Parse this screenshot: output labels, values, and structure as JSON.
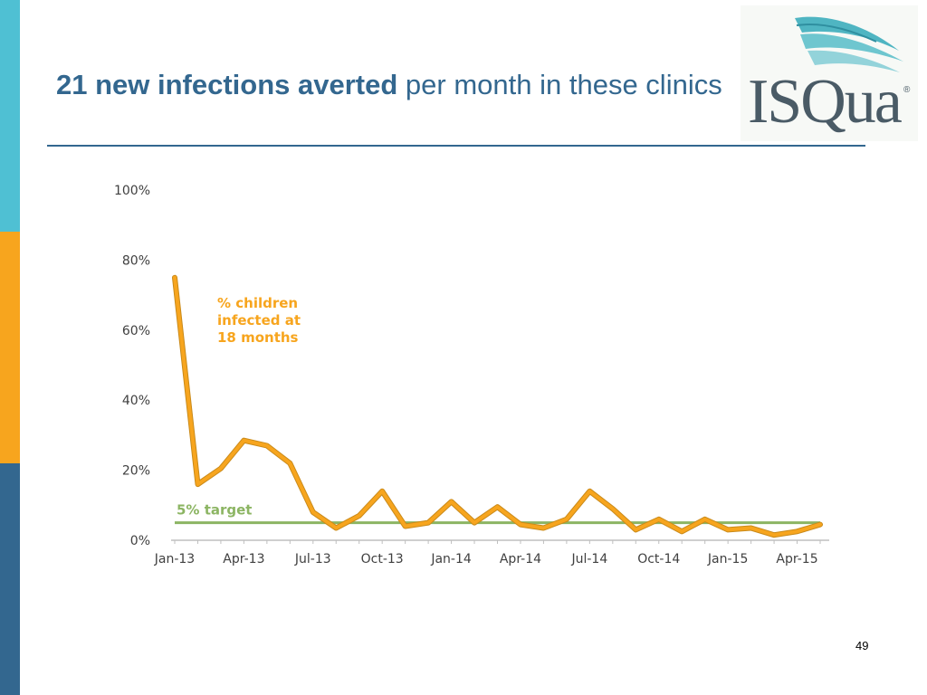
{
  "slide": {
    "title_bold": "21 new infections averted",
    "title_rest": " per month in these clinics",
    "page_number": "49",
    "logo_text": "ISQua",
    "logo_registered": "®"
  },
  "colors": {
    "accent": "#33678f",
    "teal": "#4fc0d3",
    "orange": "#f7a51e",
    "series_line": "#f7a51e",
    "target_line": "#8cb563",
    "axis_text": "#404040"
  },
  "chart_data": {
    "type": "line",
    "title": "",
    "xlabel": "",
    "ylabel": "",
    "ylim": [
      0,
      100
    ],
    "yticks": [
      "0%",
      "20%",
      "40%",
      "60%",
      "80%",
      "100%"
    ],
    "ytick_values": [
      0,
      20,
      40,
      60,
      80,
      100
    ],
    "x_tick_labels": [
      "Jan-13",
      "Apr-13",
      "Jul-13",
      "Oct-13",
      "Jan-14",
      "Apr-14",
      "Jul-14",
      "Oct-14",
      "Jan-15",
      "Apr-15"
    ],
    "x": [
      "Jan-13",
      "Feb-13",
      "Mar-13",
      "Apr-13",
      "May-13",
      "Jun-13",
      "Jul-13",
      "Aug-13",
      "Sep-13",
      "Oct-13",
      "Nov-13",
      "Dec-13",
      "Jan-14",
      "Feb-14",
      "Mar-14",
      "Apr-14",
      "May-14",
      "Jun-14",
      "Jul-14",
      "Aug-14",
      "Sep-14",
      "Oct-14",
      "Nov-14",
      "Dec-14",
      "Jan-15",
      "Feb-15",
      "Mar-15",
      "Apr-15",
      "May-15"
    ],
    "series": [
      {
        "name": "% children infected at 18 months",
        "label_lines": [
          "% children",
          "infected at",
          "18 months"
        ],
        "values": [
          75,
          16,
          20.5,
          28.5,
          27,
          22,
          8,
          3.5,
          7,
          14,
          4,
          5,
          11,
          5,
          9.5,
          4.5,
          3.5,
          6,
          14,
          9,
          3,
          6,
          2.5,
          6,
          3,
          3.5,
          1.5,
          2.5,
          4.5
        ]
      }
    ],
    "target": {
      "label": "5% target",
      "value": 5
    }
  }
}
